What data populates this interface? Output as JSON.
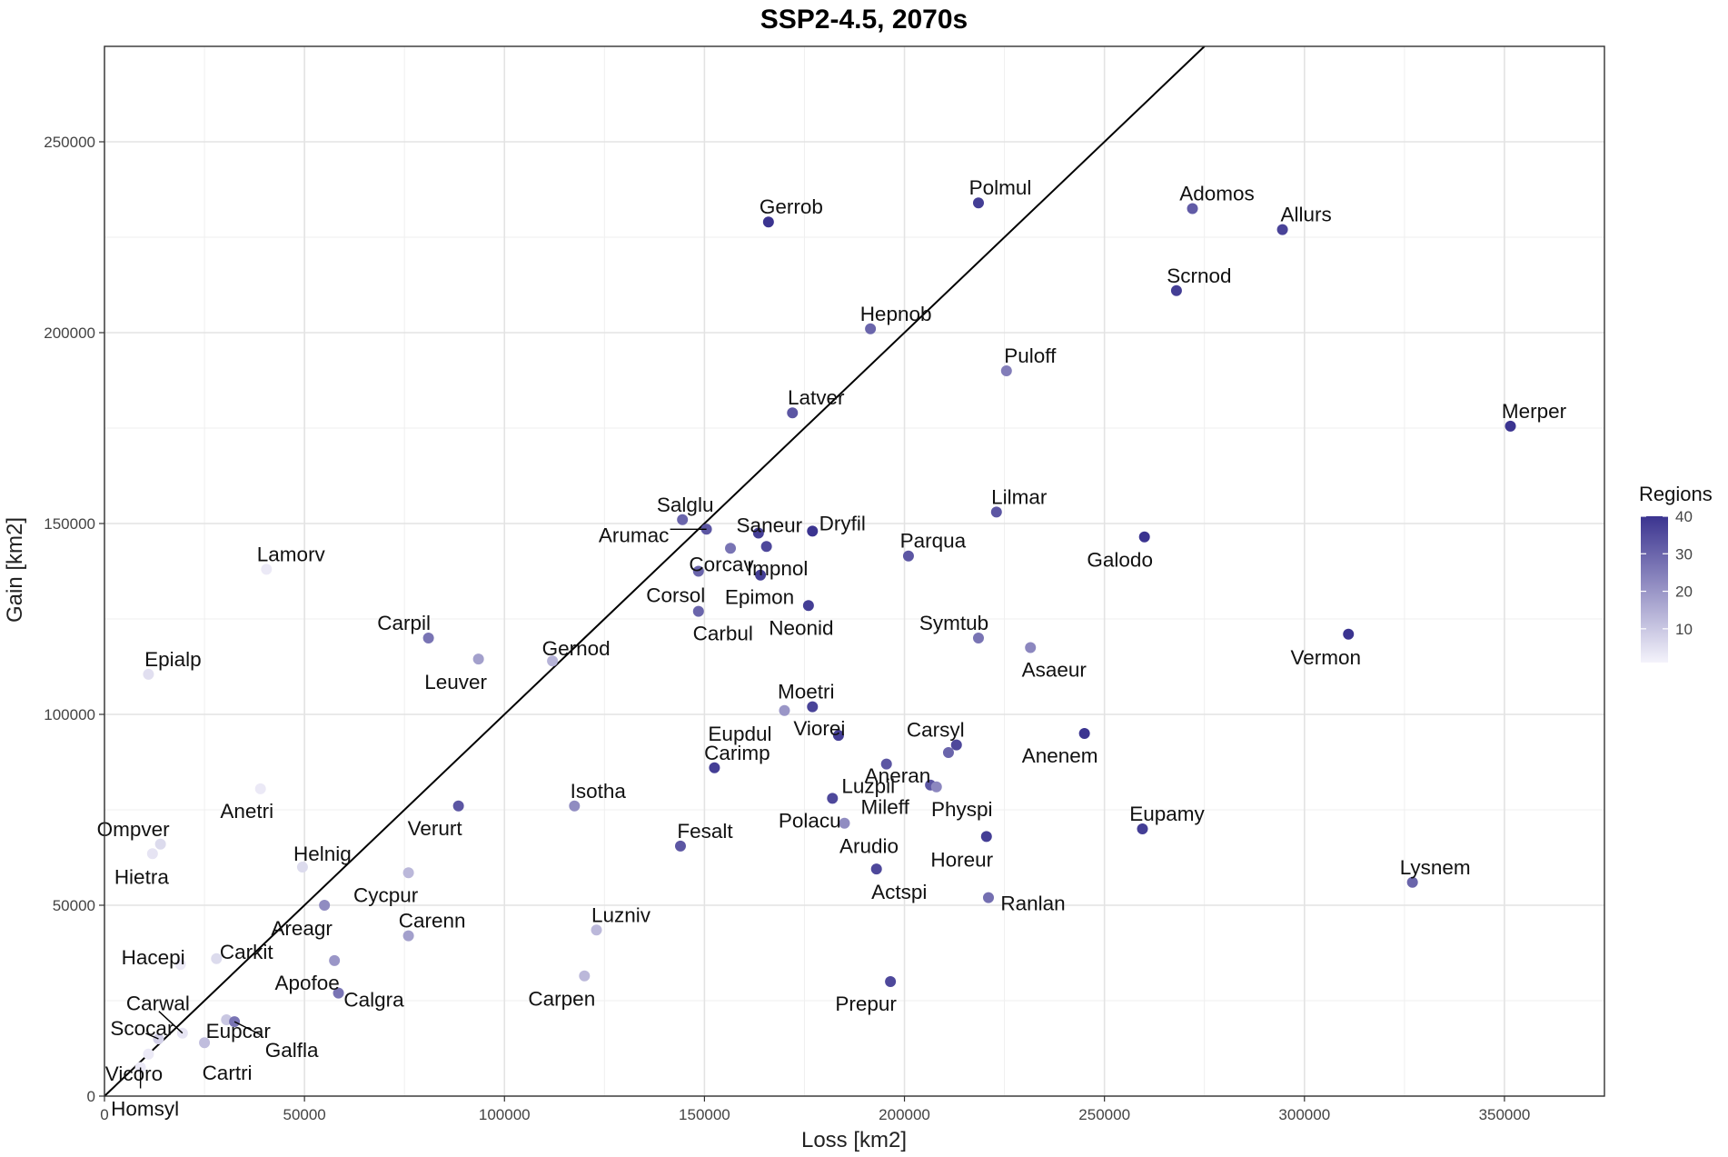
{
  "chart_data": {
    "type": "scatter",
    "title": "SSP2-4.5, 2070s",
    "xlabel": "Loss [km2]",
    "ylabel": "Gain [km2]",
    "xlim": [
      0,
      375000
    ],
    "ylim": [
      0,
      275000
    ],
    "x_ticks": [
      0,
      50000,
      100000,
      150000,
      200000,
      250000,
      300000,
      350000
    ],
    "y_ticks": [
      0,
      50000,
      100000,
      150000,
      200000,
      250000
    ],
    "x_tick_labels": [
      "0",
      "50000",
      "100000",
      "150000",
      "200000",
      "250000",
      "300000",
      "350000"
    ],
    "y_tick_labels": [
      "0",
      "50000",
      "100000",
      "150000",
      "200000",
      "250000"
    ],
    "grid": true,
    "reference_line": "y = x",
    "legend": {
      "title": "Regions",
      "placement": "right",
      "min": 1,
      "max": 40,
      "ticks": [
        10,
        20,
        30,
        40
      ],
      "tick_labels": [
        "10",
        "20",
        "30",
        "40"
      ],
      "color_low": "#f4f3fb",
      "color_high": "#3b3490"
    },
    "points": [
      {
        "name": "Gerrob",
        "x": 166000,
        "y": 229000,
        "regions": 40
      },
      {
        "name": "Polmul",
        "x": 218500,
        "y": 234000,
        "regions": 38
      },
      {
        "name": "Adomos",
        "x": 272000,
        "y": 232500,
        "regions": 32
      },
      {
        "name": "Allurs",
        "x": 294500,
        "y": 227000,
        "regions": 37
      },
      {
        "name": "Scrnod",
        "x": 268000,
        "y": 211000,
        "regions": 38
      },
      {
        "name": "Hepnob",
        "x": 191500,
        "y": 201000,
        "regions": 30
      },
      {
        "name": "Puloff",
        "x": 225500,
        "y": 190000,
        "regions": 25
      },
      {
        "name": "Latver",
        "x": 172000,
        "y": 179000,
        "regions": 33
      },
      {
        "name": "Merper",
        "x": 351500,
        "y": 175500,
        "regions": 40
      },
      {
        "name": "Salglu",
        "x": 144500,
        "y": 151000,
        "regions": 30
      },
      {
        "name": "Arumac",
        "x": 150500,
        "y": 148500,
        "regions": 33
      },
      {
        "name": "Saneur",
        "x": 163500,
        "y": 147500,
        "regions": 38
      },
      {
        "name": "Dryfil",
        "x": 177000,
        "y": 148000,
        "regions": 40
      },
      {
        "name": "Lilmar",
        "x": 223000,
        "y": 153000,
        "regions": 33
      },
      {
        "name": "Galodo",
        "x": 260000,
        "y": 146500,
        "regions": 40
      },
      {
        "name": "Corcav",
        "x": 156500,
        "y": 143500,
        "regions": 27
      },
      {
        "name": "Impnol",
        "x": 165500,
        "y": 144000,
        "regions": 36
      },
      {
        "name": "Parqua",
        "x": 201000,
        "y": 141500,
        "regions": 33
      },
      {
        "name": "Lamorv",
        "x": 40500,
        "y": 138000,
        "regions": 3
      },
      {
        "name": "Corsol",
        "x": 148500,
        "y": 137500,
        "regions": 30
      },
      {
        "name": "Epimon",
        "x": 164000,
        "y": 136500,
        "regions": 38
      },
      {
        "name": "Neonid",
        "x": 176000,
        "y": 128500,
        "regions": 38
      },
      {
        "name": "Carbul",
        "x": 148500,
        "y": 127000,
        "regions": 30
      },
      {
        "name": "Carpil",
        "x": 81000,
        "y": 120000,
        "regions": 27
      },
      {
        "name": "Symtub",
        "x": 218500,
        "y": 120000,
        "regions": 27
      },
      {
        "name": "Vermon",
        "x": 311000,
        "y": 121000,
        "regions": 40
      },
      {
        "name": "Asaeur",
        "x": 231500,
        "y": 117500,
        "regions": 23
      },
      {
        "name": "Leuver",
        "x": 93500,
        "y": 114500,
        "regions": 18
      },
      {
        "name": "Gernod",
        "x": 112000,
        "y": 114000,
        "regions": 14
      },
      {
        "name": "Epialp",
        "x": 11000,
        "y": 110500,
        "regions": 5
      },
      {
        "name": "Moetri",
        "x": 177000,
        "y": 102000,
        "regions": 37
      },
      {
        "name": "Eupdul",
        "x": 170000,
        "y": 101000,
        "regions": 20
      },
      {
        "name": "Viorei",
        "x": 183500,
        "y": 94500,
        "regions": 38
      },
      {
        "name": "Anenem",
        "x": 245000,
        "y": 95000,
        "regions": 40
      },
      {
        "name": "Carsyl",
        "x": 213000,
        "y": 92000,
        "regions": 36
      },
      {
        "name": "Aneran",
        "x": 211000,
        "y": 90000,
        "regions": 30
      },
      {
        "name": "Carimp",
        "x": 152500,
        "y": 86000,
        "regions": 38
      },
      {
        "name": "Luzpil",
        "x": 195500,
        "y": 87000,
        "regions": 33
      },
      {
        "name": "Mileff",
        "x": 206500,
        "y": 81500,
        "regions": 33
      },
      {
        "name": "Physpi",
        "x": 208000,
        "y": 81000,
        "regions": 23
      },
      {
        "name": "Anetri",
        "x": 39000,
        "y": 80500,
        "regions": 3
      },
      {
        "name": "Polacu",
        "x": 182000,
        "y": 78000,
        "regions": 36
      },
      {
        "name": "Verurt",
        "x": 88500,
        "y": 76000,
        "regions": 33
      },
      {
        "name": "Isotha",
        "x": 117500,
        "y": 76000,
        "regions": 22
      },
      {
        "name": "Arudio",
        "x": 185000,
        "y": 71500,
        "regions": 22
      },
      {
        "name": "Eupamy",
        "x": 259500,
        "y": 70000,
        "regions": 38
      },
      {
        "name": "Horeur",
        "x": 220500,
        "y": 68000,
        "regions": 38
      },
      {
        "name": "Ompver",
        "x": 14000,
        "y": 66000,
        "regions": 6
      },
      {
        "name": "Fesalt",
        "x": 144000,
        "y": 65500,
        "regions": 33
      },
      {
        "name": "Hietra",
        "x": 12000,
        "y": 63500,
        "regions": 4
      },
      {
        "name": "Helnig",
        "x": 49500,
        "y": 60000,
        "regions": 6
      },
      {
        "name": "Actspi",
        "x": 193000,
        "y": 59500,
        "regions": 36
      },
      {
        "name": "Cycpur",
        "x": 76000,
        "y": 58500,
        "regions": 13
      },
      {
        "name": "Lysnem",
        "x": 327000,
        "y": 56000,
        "regions": 30
      },
      {
        "name": "Ranlan",
        "x": 221000,
        "y": 52000,
        "regions": 28
      },
      {
        "name": "Areagr",
        "x": 55000,
        "y": 50000,
        "regions": 22
      },
      {
        "name": "Luzniv",
        "x": 123000,
        "y": 43500,
        "regions": 13
      },
      {
        "name": "Carenn",
        "x": 76000,
        "y": 42000,
        "regions": 18
      },
      {
        "name": "Carkit",
        "x": 28000,
        "y": 36000,
        "regions": 6
      },
      {
        "name": "Hacepi",
        "x": 19000,
        "y": 34500,
        "regions": 3
      },
      {
        "name": "Apofoe",
        "x": 57500,
        "y": 35500,
        "regions": 20
      },
      {
        "name": "Carpen",
        "x": 120000,
        "y": 31500,
        "regions": 13
      },
      {
        "name": "Prepur",
        "x": 196500,
        "y": 30000,
        "regions": 36
      },
      {
        "name": "Calgra",
        "x": 58500,
        "y": 27000,
        "regions": 27
      },
      {
        "name": "Eupcar",
        "x": 30500,
        "y": 20000,
        "regions": 10
      },
      {
        "name": "Galfla",
        "x": 32500,
        "y": 19500,
        "regions": 27
      },
      {
        "name": "Carwal",
        "x": 19500,
        "y": 16500,
        "regions": 4
      },
      {
        "name": "Scocar",
        "x": 13500,
        "y": 15000,
        "regions": 8
      },
      {
        "name": "Cartri",
        "x": 25000,
        "y": 14000,
        "regions": 12
      },
      {
        "name": "Vicoro",
        "x": 11000,
        "y": 11000,
        "regions": 3
      },
      {
        "name": "Homsyl",
        "x": 9000,
        "y": 7500,
        "regions": 3
      }
    ]
  }
}
